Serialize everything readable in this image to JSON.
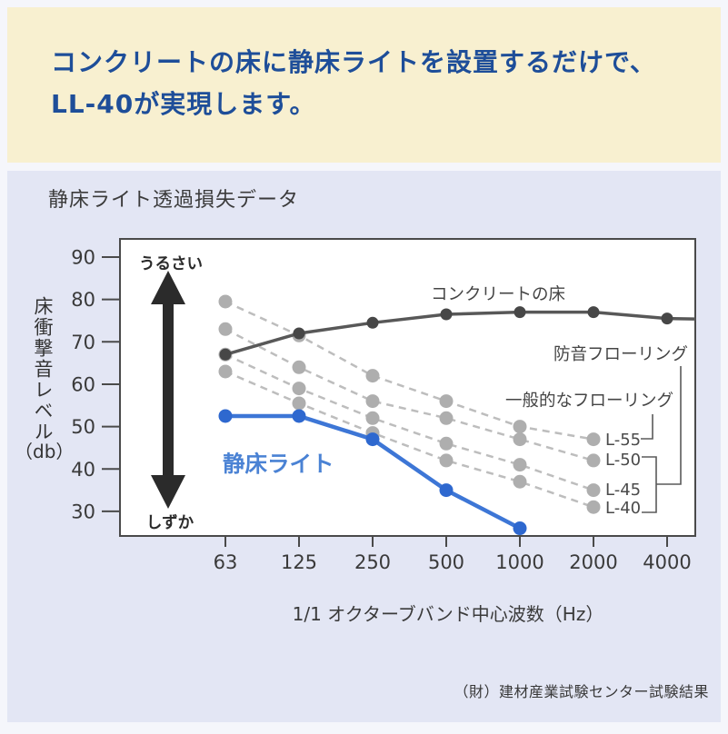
{
  "banner": {
    "line1": "コンクリートの床に静床ライトを設置するだけで、",
    "line2": "LL-40が実現します。"
  },
  "section": {
    "title": "静床ライト透過損失データ"
  },
  "footer": {
    "credit": "（財）建材産業試験センター試験結果"
  },
  "chart_data": {
    "type": "line",
    "title": "静床ライト透過損失データ",
    "categories": [
      "63",
      "125",
      "250",
      "500",
      "1000",
      "2000",
      "4000"
    ],
    "xlabel": "1/1 オクターブバンド中心波数（Hz）",
    "ylabel": "床衝撃音レベル",
    "ylabel_unit": "（db）",
    "yticks": [
      90,
      80,
      70,
      60,
      50,
      40,
      30
    ],
    "ylim": [
      24,
      94
    ],
    "grid": false,
    "annotations": {
      "loud": "うるさい",
      "quiet": "しずか"
    },
    "series": [
      {
        "name": "L-55",
        "style": "dashed-gray",
        "values": [
          79.5,
          71.5,
          62,
          56,
          50,
          47
        ]
      },
      {
        "name": "L-50",
        "style": "dashed-gray",
        "values": [
          73,
          64,
          56,
          52,
          47,
          42
        ]
      },
      {
        "name": "L-45",
        "style": "dashed-gray",
        "values": [
          67,
          59,
          52,
          46,
          41,
          35
        ]
      },
      {
        "name": "L-40",
        "style": "dashed-gray",
        "values": [
          63,
          55.5,
          48.5,
          42,
          37,
          31
        ]
      },
      {
        "name": "コンクリートの床",
        "style": "solid-dark",
        "values": [
          67,
          72,
          74.5,
          76.5,
          77,
          77,
          75.5
        ],
        "extend_to_edge": 75.4
      },
      {
        "name": "静床ライト",
        "style": "solid-blue",
        "values": [
          52.5,
          52.5,
          47,
          35,
          26
        ]
      }
    ],
    "curve_labels": [
      "L-55",
      "L-50",
      "L-45",
      "L-40"
    ],
    "line_labels": {
      "concrete": "コンクリートの床",
      "product": "静床ライト"
    },
    "legend_right": {
      "soundproof_label": "防音フローリング",
      "soundproof_curves": [
        "L-50",
        "L-45",
        "L-40"
      ],
      "general_label": "一般的なフローリング",
      "general_curves": [
        "L-55"
      ]
    },
    "colors": {
      "guide_line": "#bdbdbd",
      "guide_dot": "#aeaeae",
      "concrete_line": "#585858",
      "concrete_dot": "#474747",
      "product_line": "#3d76d6",
      "product_dot": "#2e68cf",
      "product_label": "#4a82d4",
      "axis": "#4a4a4a",
      "text": "#3a3a3a",
      "arrow": "#2b2b2b",
      "plot_bg": "#ffffff"
    }
  }
}
